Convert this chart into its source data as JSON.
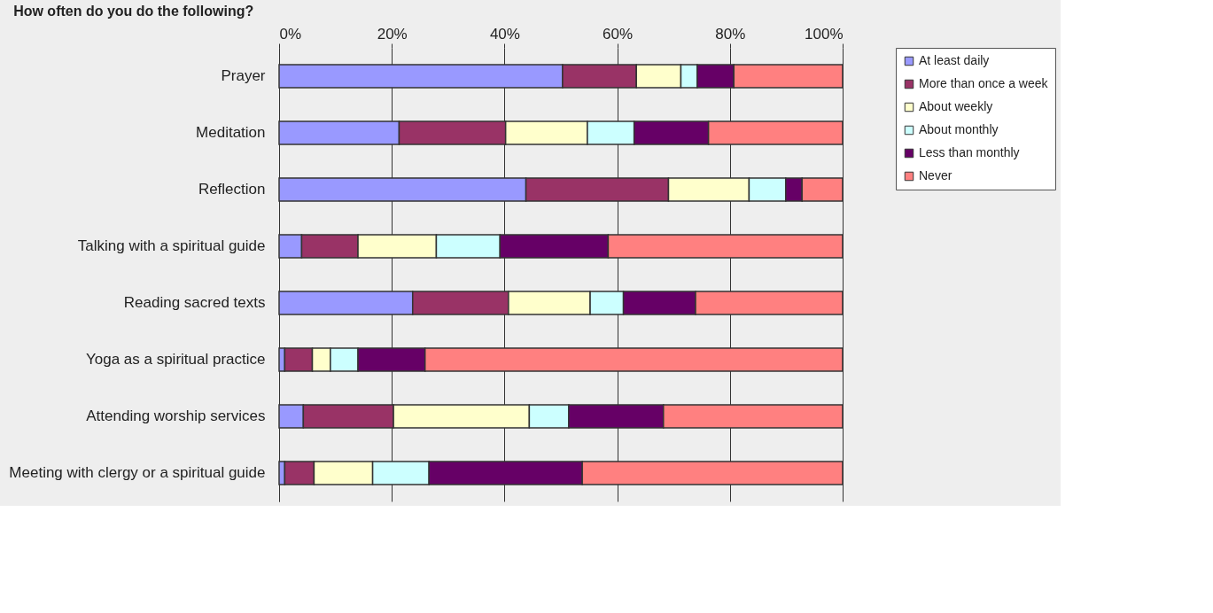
{
  "chart_data": {
    "type": "bar",
    "orientation": "horizontal",
    "stacked": true,
    "title": "How often do you do the following?",
    "categories": [
      "Prayer",
      "Meditation",
      "Reflection",
      "Talking with a spiritual guide",
      "Reading sacred texts",
      "Yoga as a spiritual practice",
      "Attending worship services",
      "Meeting  with clergy or a spiritual guide"
    ],
    "series": [
      {
        "name": "At least daily",
        "color": "#9999ff",
        "values": [
          50.3,
          21.3,
          43.8,
          4.0,
          23.7,
          1.0,
          4.3,
          1.0
        ]
      },
      {
        "name": "More than once a week",
        "color": "#993366",
        "values": [
          13.1,
          18.9,
          25.3,
          10.0,
          17.0,
          4.9,
          16.0,
          5.2
        ]
      },
      {
        "name": "About weekly",
        "color": "#ffffcc",
        "values": [
          7.9,
          14.5,
          14.3,
          13.9,
          14.5,
          3.2,
          24.1,
          10.4
        ]
      },
      {
        "name": "About monthly",
        "color": "#ccffff",
        "values": [
          2.9,
          8.3,
          6.5,
          11.3,
          5.9,
          4.9,
          7.0,
          10.0
        ]
      },
      {
        "name": "Less than monthly",
        "color": "#660066",
        "values": [
          6.5,
          13.2,
          2.9,
          19.2,
          12.8,
          11.9,
          16.8,
          27.2
        ]
      },
      {
        "name": "Never",
        "color": "#ff8080",
        "values": [
          19.3,
          23.8,
          7.2,
          41.6,
          26.1,
          74.1,
          31.8,
          46.2
        ]
      }
    ],
    "xlim": [
      0,
      100
    ],
    "xticks": [
      {
        "value": 0,
        "label": "0%"
      },
      {
        "value": 20,
        "label": "20%"
      },
      {
        "value": 40,
        "label": "40%"
      },
      {
        "value": 60,
        "label": "60%"
      },
      {
        "value": 80,
        "label": "80%"
      },
      {
        "value": 100,
        "label": "100%"
      }
    ],
    "grid": "x",
    "legend": "right"
  }
}
